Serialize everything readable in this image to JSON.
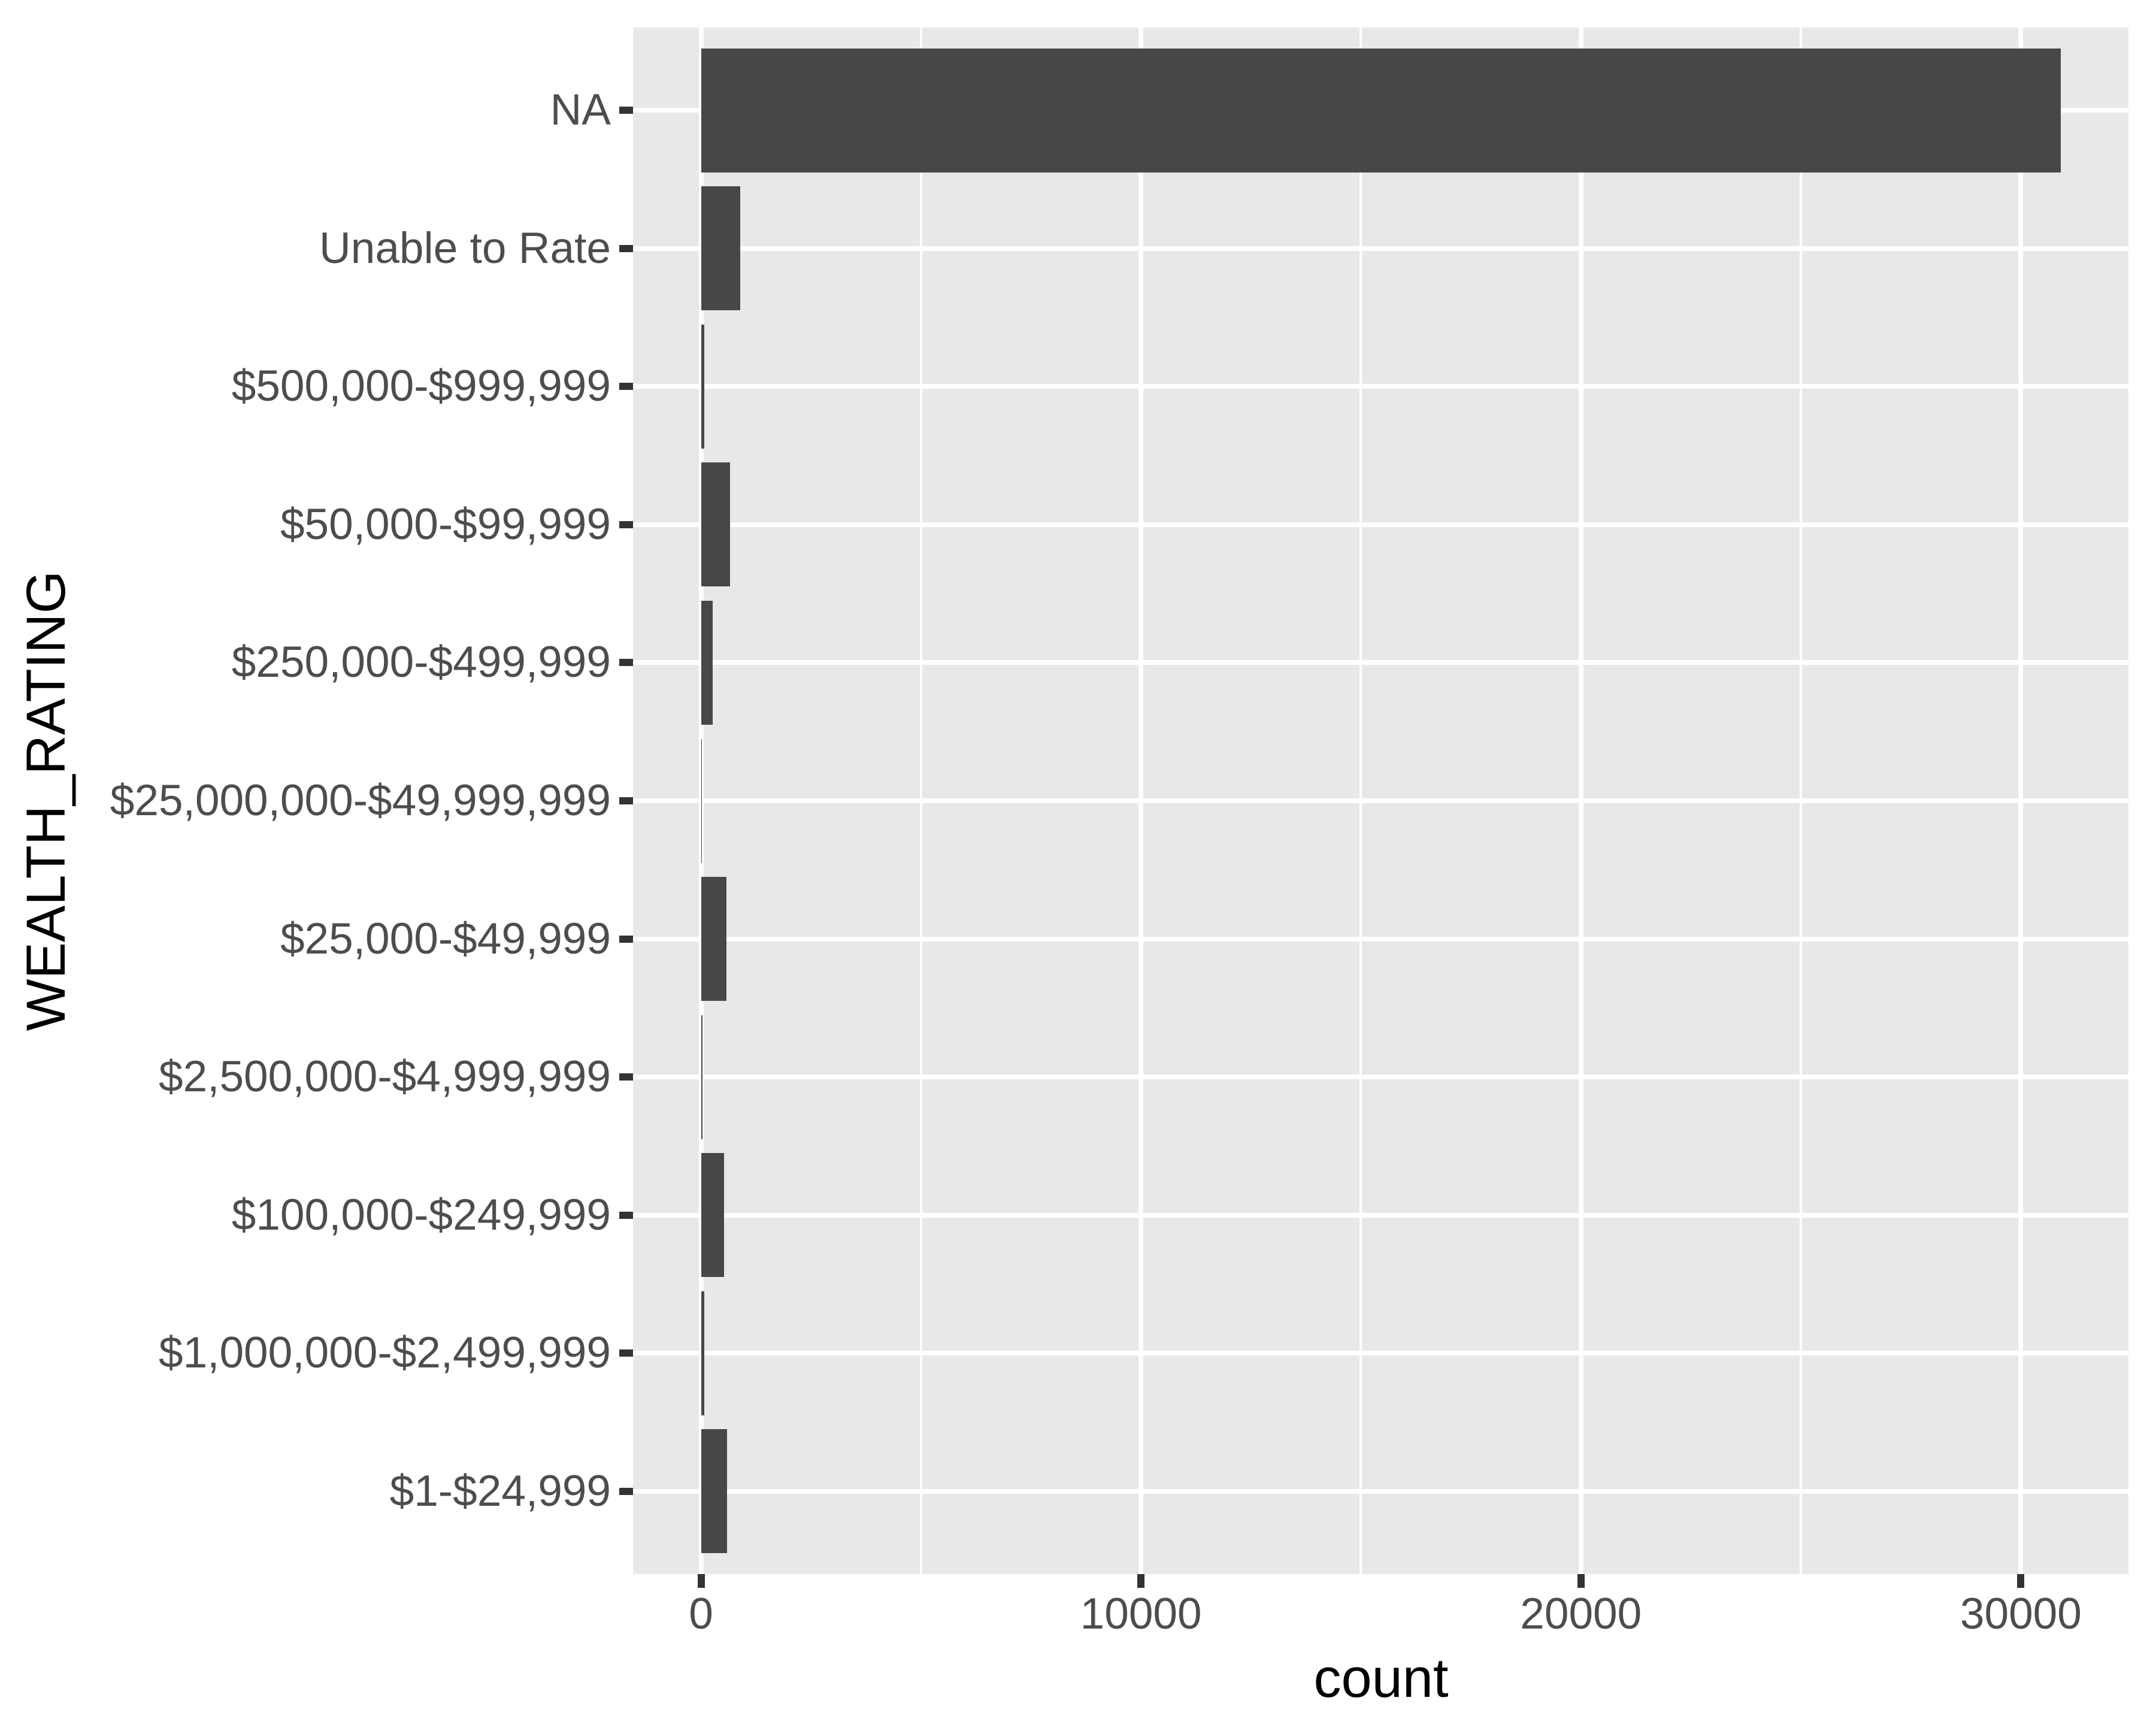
{
  "chart_data": {
    "type": "bar",
    "orientation": "horizontal",
    "xlabel": "count",
    "ylabel": "WEALTH_RATING",
    "categories_top_to_bottom": [
      "NA",
      "Unable to Rate",
      "$500,000-$999,999",
      "$50,000-$99,999",
      "$250,000-$499,999",
      "$25,000,000-$49,999,999",
      "$25,000-$49,999",
      "$2,500,000-$4,999,999",
      "$100,000-$249,999",
      "$1,000,000-$2,499,999",
      "$1-$24,999"
    ],
    "values": [
      30900,
      885,
      80,
      655,
      272,
      14,
      572,
      35,
      525,
      78,
      586
    ],
    "x_ticks": [
      0,
      10000,
      20000,
      30000
    ],
    "x_tick_labels": [
      "0",
      "10000",
      "20000",
      "30000"
    ],
    "x_minor_gridlines": [
      5000,
      15000,
      25000
    ],
    "xlim": [
      -1545,
      32445
    ],
    "grid": true,
    "legend_position": "none",
    "colors": {
      "bar_fill": "#474747",
      "panel_background": "#E8E8E8",
      "gridline": "#FFFFFF",
      "tick_mark": "#333333",
      "axis_text": "#4D4D4D",
      "axis_title": "#000000",
      "figure_background": "#FFFFFF"
    }
  }
}
